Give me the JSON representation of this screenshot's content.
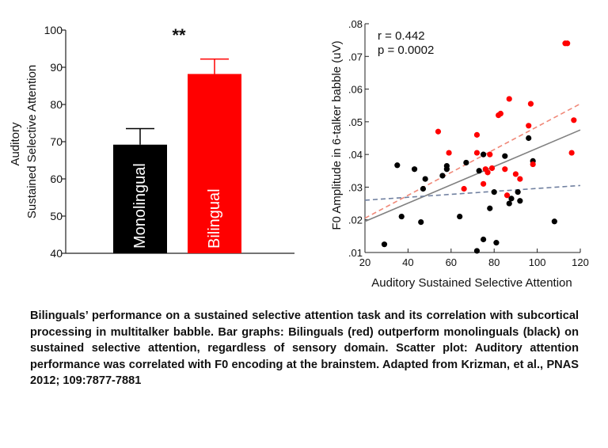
{
  "chart_data": [
    {
      "type": "bar",
      "categories": [
        "Monolingual",
        "Bilingual"
      ],
      "values": [
        69.2,
        88.2
      ],
      "errors": [
        4.3,
        4.0
      ],
      "colors": [
        "#000000",
        "#ff0000"
      ],
      "ylabel_line1": "Auditory",
      "ylabel_line2": "Sustained Selective Attention",
      "ylim": [
        40,
        100
      ],
      "yticks": [
        "40",
        "50",
        "60",
        "70",
        "80",
        "90",
        "100"
      ],
      "ytick_values": [
        40,
        50,
        60,
        70,
        80,
        90,
        100
      ],
      "significance": "**",
      "bar_label_color": "#ffffff"
    },
    {
      "type": "scatter",
      "xlabel": "Auditory Sustained Selective Attention",
      "ylabel": "F0 Amplitude in 6-talker babble (uV)",
      "xlim": [
        20,
        120
      ],
      "ylim": [
        0.01,
        0.08
      ],
      "xticks": [
        "20",
        "40",
        "60",
        "80",
        "100",
        "120"
      ],
      "xtick_values": [
        20,
        40,
        60,
        80,
        100,
        120
      ],
      "yticks": [
        ".01",
        ".02",
        ".03",
        ".04",
        ".05",
        ".06",
        ".07",
        ".08"
      ],
      "ytick_values": [
        0.01,
        0.02,
        0.03,
        0.04,
        0.05,
        0.06,
        0.07,
        0.08
      ],
      "annotation_r": "r = 0.442",
      "annotation_p": "p = 0.0002",
      "series": [
        {
          "color": "#000000",
          "points": [
            [
              29,
              0.0125
            ],
            [
              35,
              0.0367
            ],
            [
              37,
              0.021
            ],
            [
              43,
              0.0355
            ],
            [
              46,
              0.0193
            ],
            [
              47,
              0.0295
            ],
            [
              48,
              0.0325
            ],
            [
              56,
              0.0335
            ],
            [
              58,
              0.0365
            ],
            [
              58,
              0.0355
            ],
            [
              64,
              0.021
            ],
            [
              67,
              0.0375
            ],
            [
              72,
              0.0105
            ],
            [
              73,
              0.035
            ],
            [
              75,
              0.014
            ],
            [
              75,
              0.04
            ],
            [
              78,
              0.0235
            ],
            [
              80,
              0.0285
            ],
            [
              81,
              0.013
            ],
            [
              85,
              0.0395
            ],
            [
              87,
              0.025
            ],
            [
              88,
              0.0265
            ],
            [
              91,
              0.0285
            ],
            [
              92,
              0.0258
            ],
            [
              96,
              0.045
            ],
            [
              98,
              0.038
            ],
            [
              108,
              0.0195
            ]
          ]
        },
        {
          "color": "#ff0000",
          "points": [
            [
              54,
              0.047
            ],
            [
              59,
              0.0405
            ],
            [
              66,
              0.0295
            ],
            [
              72,
              0.046
            ],
            [
              72,
              0.0405
            ],
            [
              75,
              0.031
            ],
            [
              76,
              0.0355
            ],
            [
              77,
              0.0345
            ],
            [
              78,
              0.04
            ],
            [
              79,
              0.0358
            ],
            [
              82,
              0.052
            ],
            [
              83,
              0.0525
            ],
            [
              85,
              0.0355
            ],
            [
              86,
              0.0275
            ],
            [
              87,
              0.057
            ],
            [
              90,
              0.034
            ],
            [
              92,
              0.0325
            ],
            [
              96,
              0.0488
            ],
            [
              97,
              0.0555
            ],
            [
              98,
              0.037
            ],
            [
              113,
              0.074
            ],
            [
              114,
              0.074
            ],
            [
              116,
              0.0405
            ],
            [
              117,
              0.0505
            ]
          ]
        }
      ],
      "fit_lines": [
        {
          "color": "#808080",
          "dash": false,
          "from": [
            20,
            0.0195
          ],
          "to": [
            120,
            0.0475
          ]
        },
        {
          "color": "#f08878",
          "dash": true,
          "from": [
            20,
            0.0205
          ],
          "to": [
            120,
            0.0555
          ]
        },
        {
          "color": "#7080a0",
          "dash": true,
          "from": [
            20,
            0.026
          ],
          "to": [
            120,
            0.0305
          ]
        }
      ]
    }
  ],
  "caption": "Bilinguals’ performance on a sustained selective attention task and its correlation with subcortical processing in multitalker babble. Bar graphs: Bilinguals (red) outperform monolinguals (black) on sustained selective attention, regardless of sensory domain. Scatter plot: Auditory attention performance was correlated with F0 encoding at the brainstem. Adapted from Krizman, et al., PNAS 2012; 109:7877-7881"
}
